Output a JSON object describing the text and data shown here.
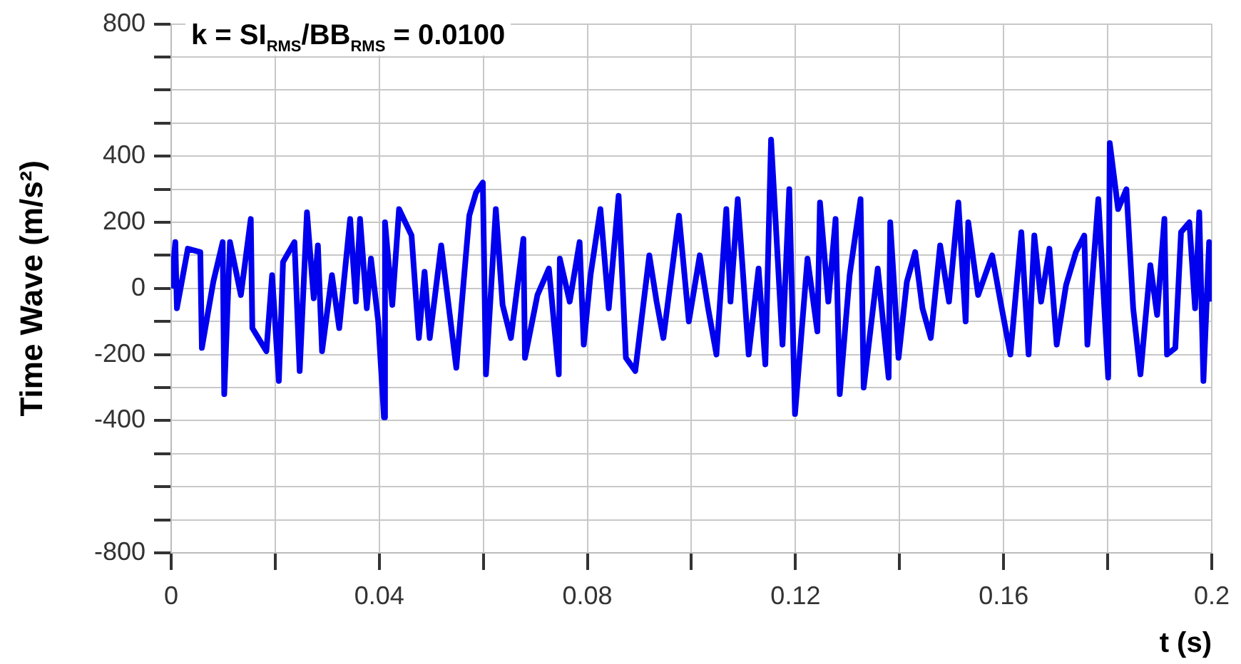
{
  "chart_data": {
    "type": "line",
    "annotations": [
      "k = SI$_{RMS}$/BB$_{RMS}$ = 0.0100"
    ],
    "xlabel": "t (s)",
    "ylabel": "Time Wave (m/s²)",
    "xlim": [
      0,
      0.2
    ],
    "ylim": [
      -800,
      800
    ],
    "xticks": [
      0,
      {
        "value": 0.02,
        "label": null
      },
      0.04,
      {
        "value": 0.06,
        "label": null
      },
      0.08,
      {
        "value": 0.1,
        "label": null
      },
      0.12,
      {
        "value": 0.14,
        "label": null
      },
      0.16,
      {
        "value": 0.18,
        "label": null
      },
      0.2
    ],
    "yticks": [
      -800,
      {
        "value": -700,
        "label": null
      },
      {
        "value": -600,
        "label": null
      },
      {
        "value": -500,
        "label": null
      },
      -400,
      {
        "value": -300,
        "label": null
      },
      -200,
      {
        "value": -100,
        "label": null
      },
      0,
      {
        "value": 100,
        "label": null
      },
      200,
      {
        "value": 300,
        "label": null
      },
      400,
      {
        "value": 500,
        "label": null
      },
      {
        "value": 600,
        "label": null
      },
      {
        "value": 700,
        "label": null
      },
      800
    ],
    "grid": true,
    "legend": false,
    "marker": "none",
    "line_style": "solid",
    "series": [
      {
        "color": "#0000ee",
        "x": [
          0,
          0.0008,
          0.0011,
          0.0032,
          0.0056,
          0.0059,
          0.0081,
          0.0099,
          0.0102,
          0.0113,
          0.0134,
          0.0153,
          0.0156,
          0.0183,
          0.0194,
          0.0207,
          0.0215,
          0.0237,
          0.0247,
          0.0261,
          0.0274,
          0.0282,
          0.029,
          0.0309,
          0.0323,
          0.0344,
          0.0355,
          0.0363,
          0.0376,
          0.0384,
          0.0398,
          0.0409,
          0.0411,
          0.0425,
          0.0438,
          0.0462,
          0.0476,
          0.0487,
          0.0497,
          0.0519,
          0.0548,
          0.0573,
          0.0586,
          0.0599,
          0.0605,
          0.0624,
          0.0637,
          0.0653,
          0.0677,
          0.068,
          0.0704,
          0.0726,
          0.0745,
          0.0747,
          0.0766,
          0.0785,
          0.0793,
          0.0806,
          0.0825,
          0.0841,
          0.086,
          0.0874,
          0.0892,
          0.0919,
          0.0933,
          0.0946,
          0.0976,
          0.0995,
          0.1016,
          0.1032,
          0.1048,
          0.1067,
          0.1075,
          0.1089,
          0.111,
          0.1129,
          0.1142,
          0.1153,
          0.1175,
          0.1188,
          0.1199,
          0.1223,
          0.1242,
          0.1247,
          0.1263,
          0.1277,
          0.1285,
          0.1304,
          0.1325,
          0.1331,
          0.1358,
          0.1379,
          0.1382,
          0.1398,
          0.1414,
          0.143,
          0.1444,
          0.146,
          0.1478,
          0.1495,
          0.1513,
          0.1527,
          0.1532,
          0.1551,
          0.1578,
          0.1594,
          0.1613,
          0.1634,
          0.1648,
          0.1659,
          0.1672,
          0.1688,
          0.1702,
          0.172,
          0.1739,
          0.1755,
          0.1761,
          0.1782,
          0.1801,
          0.1804,
          0.182,
          0.1836,
          0.1849,
          0.1863,
          0.1882,
          0.1895,
          0.1909,
          0.1914,
          0.193,
          0.1941,
          0.1957,
          0.1968,
          0.1976,
          0.1984,
          0.1995,
          0.2
        ],
        "values": [
          0,
          140,
          -60,
          120,
          110,
          -180,
          20,
          140,
          -320,
          140,
          -20,
          210,
          -120,
          -190,
          40,
          -280,
          80,
          140,
          -250,
          230,
          -30,
          130,
          -190,
          40,
          -120,
          210,
          -40,
          210,
          -60,
          90,
          -100,
          -390,
          200,
          -50,
          240,
          160,
          -150,
          50,
          -150,
          130,
          -240,
          220,
          290,
          320,
          -260,
          240,
          -50,
          -150,
          150,
          -210,
          -20,
          60,
          -260,
          90,
          -40,
          140,
          -170,
          40,
          240,
          -60,
          280,
          -210,
          -250,
          100,
          -40,
          -150,
          220,
          -100,
          100,
          -60,
          -200,
          240,
          -40,
          270,
          -200,
          60,
          -230,
          450,
          -170,
          300,
          -380,
          90,
          -130,
          260,
          -40,
          210,
          -320,
          40,
          270,
          -300,
          60,
          -270,
          200,
          -210,
          20,
          110,
          -60,
          -150,
          130,
          -40,
          260,
          -100,
          200,
          -20,
          100,
          -40,
          -200,
          170,
          -200,
          160,
          -40,
          120,
          -170,
          10,
          110,
          160,
          -170,
          270,
          -270,
          440,
          240,
          300,
          -60,
          -260,
          70,
          -80,
          210,
          -200,
          -180,
          170,
          200,
          -60,
          230,
          -280,
          140,
          -40
        ]
      }
    ]
  }
}
